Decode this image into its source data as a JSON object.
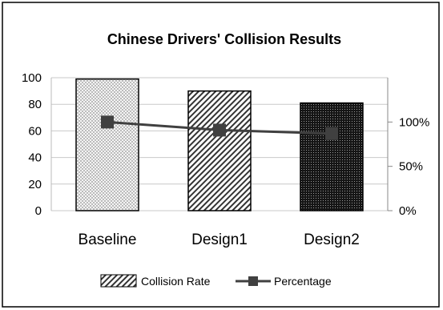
{
  "chart_data": {
    "type": "bar",
    "title": "Chinese Drivers' Collision Results",
    "xlabel": "",
    "ylabel": "",
    "categories": [
      "Baseline",
      "Design1",
      "Design2"
    ],
    "series": [
      {
        "name": "Collision Rate",
        "type": "bar",
        "axis": "left",
        "values": [
          99,
          90,
          81
        ]
      },
      {
        "name": "Percentage",
        "type": "line",
        "axis": "right",
        "values": [
          100,
          90.9,
          87
        ]
      }
    ],
    "ylim": [
      0,
      100
    ],
    "y_ticks": [
      "0",
      "20",
      "40",
      "60",
      "80",
      "100"
    ],
    "y2lim": [
      0,
      150
    ],
    "y2_ticks": [
      "0%",
      "50%",
      "100%"
    ],
    "y2_tick_values": [
      0,
      50,
      100
    ],
    "grid": true,
    "legend": "bottom",
    "colors": {
      "bar_fill": "#555555",
      "line": "#404040",
      "grid": "#c8c8c8",
      "frame": "#000000"
    }
  }
}
